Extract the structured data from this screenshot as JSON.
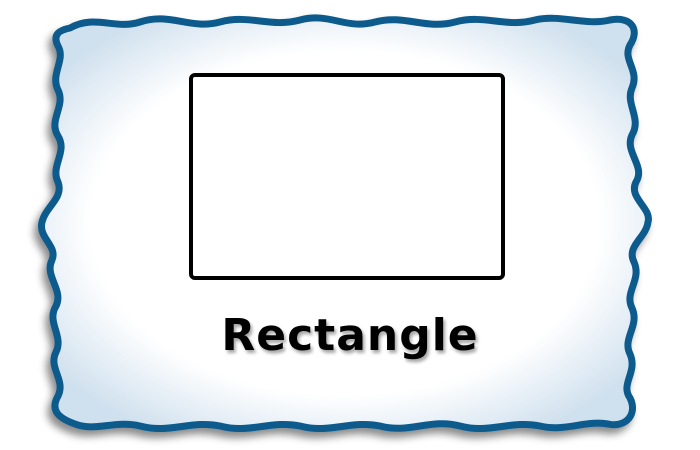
{
  "card": {
    "label": "Rectangle",
    "shape": "rectangle"
  },
  "colors": {
    "frame_border": "#0f5a8c",
    "frame_glow": "#cfe0ee",
    "background": "#ffffff",
    "shape_outline": "#000000",
    "label_text": "#000000"
  }
}
